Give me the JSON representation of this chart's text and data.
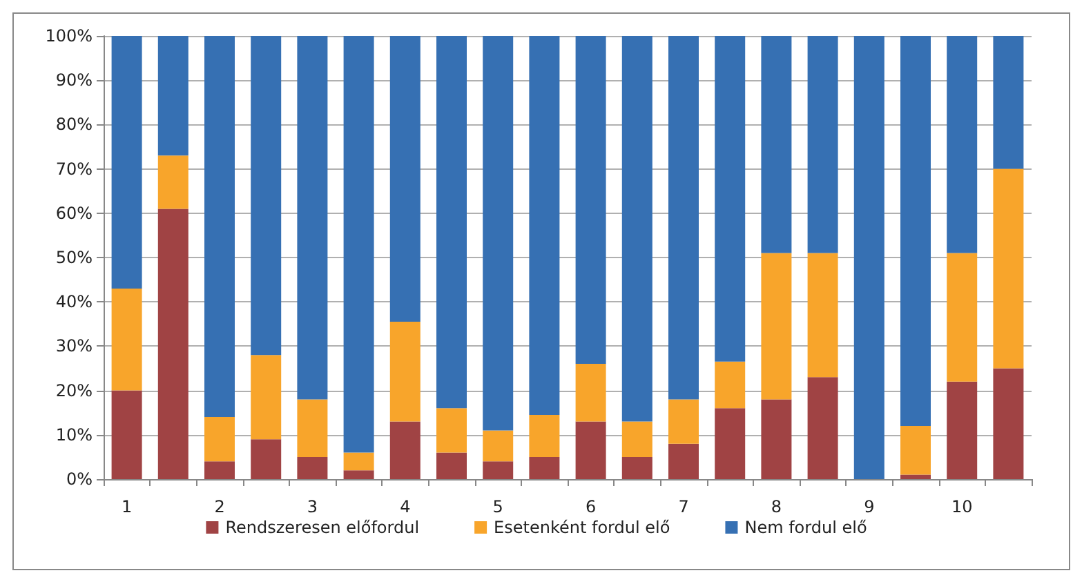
{
  "chart_data": {
    "type": "bar",
    "stacked": true,
    "categories": [
      "1",
      null,
      "2",
      null,
      "3",
      null,
      "4",
      null,
      "5",
      null,
      "6",
      null,
      "7",
      null,
      "8",
      null,
      "9",
      null,
      "10",
      null
    ],
    "series": [
      {
        "name": "Rendszeresen előfordul",
        "color": "#a04344",
        "values": [
          20,
          61,
          4,
          9,
          5,
          2,
          13,
          6,
          4,
          5,
          13,
          5,
          8,
          16,
          18,
          23,
          0,
          1,
          22,
          25
        ]
      },
      {
        "name": "Esetenként fordul elő",
        "color": "#f8a52b",
        "values": [
          23,
          12,
          10,
          19,
          13,
          4,
          22.5,
          10,
          7,
          9.5,
          13,
          8,
          10,
          10.5,
          33,
          28,
          0,
          11,
          29,
          45
        ]
      },
      {
        "name": "Nem fordul elő",
        "color": "#3670b3",
        "values": [
          57,
          27,
          86,
          72,
          82,
          94,
          64.5,
          84,
          89,
          85.5,
          74,
          87,
          82,
          73.5,
          49,
          49,
          100,
          88,
          49,
          30
        ]
      }
    ],
    "ylim": [
      0,
      100
    ],
    "yticks": [
      {
        "value": 0,
        "label": "0%"
      },
      {
        "value": 10,
        "label": "10%"
      },
      {
        "value": 20,
        "label": "20%"
      },
      {
        "value": 30,
        "label": "30%"
      },
      {
        "value": 40,
        "label": "40%"
      },
      {
        "value": 50,
        "label": "50%"
      },
      {
        "value": 60,
        "label": "60%"
      },
      {
        "value": 70,
        "label": "70%"
      },
      {
        "value": 80,
        "label": "80%"
      },
      {
        "value": 90,
        "label": "90%"
      },
      {
        "value": 100,
        "label": "100%"
      }
    ],
    "grid": "y",
    "legend": "bottom"
  }
}
